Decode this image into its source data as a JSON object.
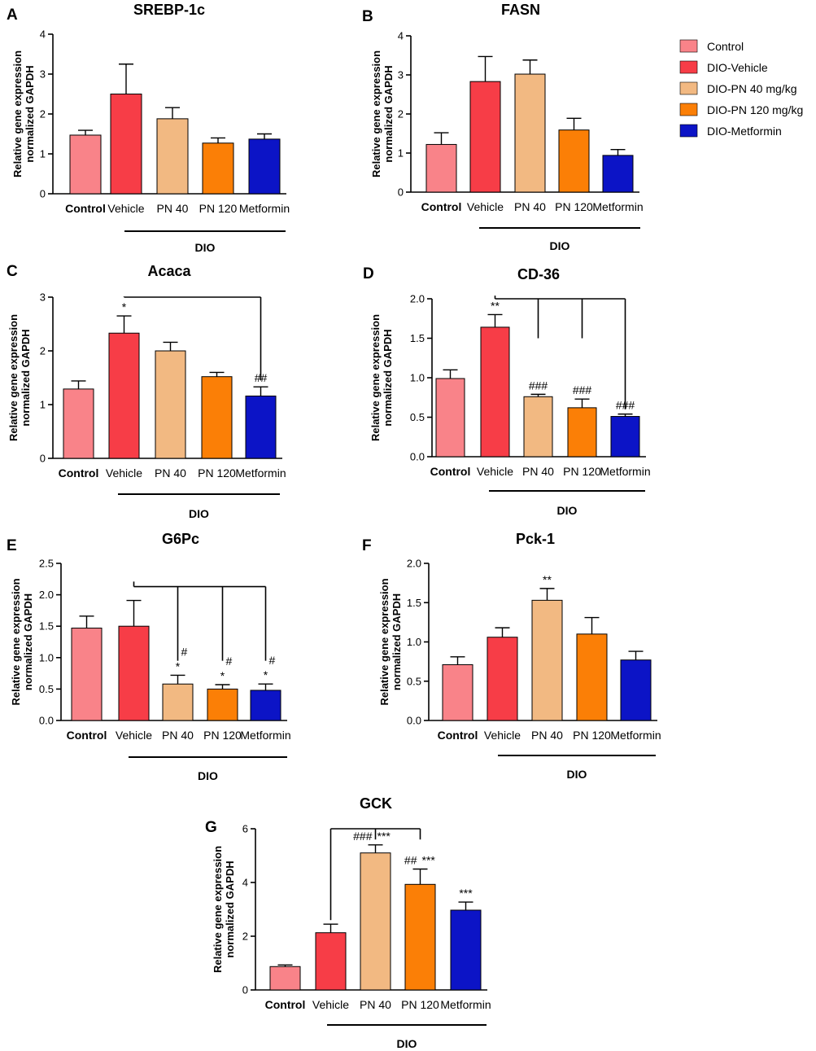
{
  "legend": [
    {
      "label": "Control",
      "color": "#f98389"
    },
    {
      "label": "DIO-Vehicle",
      "color": "#f73d47"
    },
    {
      "label": "DIO-PN 40 mg/kg",
      "color": "#f2b982"
    },
    {
      "label": "DIO-PN 120 mg/kg",
      "color": "#fb7f06"
    },
    {
      "label": "DIO-Metformin",
      "color": "#0c14c6"
    }
  ],
  "chart_data": [
    {
      "panel": "A",
      "type": "bar",
      "title": "SREBP-1c",
      "ylabel": [
        "Relative gene expression",
        "normalized GAPDH"
      ],
      "categories": [
        "Control",
        "Vehicle",
        "PN 40",
        "PN 120",
        "Metformin"
      ],
      "values": [
        1.47,
        2.5,
        1.88,
        1.27,
        1.37
      ],
      "errors": [
        0.12,
        0.75,
        0.28,
        0.13,
        0.13
      ],
      "ylim": [
        0,
        4
      ],
      "yticks": [
        "0",
        "1",
        "2",
        "3",
        "4"
      ],
      "ytick_values": [
        0,
        1,
        2,
        3,
        4
      ],
      "group_label": "DIO",
      "annotations": [],
      "brackets": []
    },
    {
      "panel": "B",
      "type": "bar",
      "title": "FASN",
      "ylabel": [
        "Relative gene expression",
        "normalized GAPDH"
      ],
      "categories": [
        "Control",
        "Vehicle",
        "PN 40",
        "PN 120",
        "Metformin"
      ],
      "values": [
        1.22,
        2.83,
        3.02,
        1.59,
        0.94
      ],
      "errors": [
        0.3,
        0.64,
        0.36,
        0.3,
        0.15
      ],
      "ylim": [
        0,
        4
      ],
      "yticks": [
        "0",
        "1",
        "2",
        "3",
        "4"
      ],
      "ytick_values": [
        0,
        1,
        2,
        3,
        4
      ],
      "group_label": "DIO",
      "annotations": [],
      "brackets": []
    },
    {
      "panel": "C",
      "type": "bar",
      "title": "Acaca",
      "ylabel": [
        "Relative gene expression",
        "normalized GAPDH"
      ],
      "categories": [
        "Control",
        "Vehicle",
        "PN 40",
        "PN 120",
        "Metformin"
      ],
      "values": [
        1.29,
        2.33,
        2.0,
        1.52,
        1.16
      ],
      "errors": [
        0.15,
        0.32,
        0.16,
        0.08,
        0.17
      ],
      "ylim": [
        0,
        3
      ],
      "yticks": [
        "0",
        "1",
        "2",
        "3"
      ],
      "ytick_values": [
        0,
        1,
        2,
        3
      ],
      "group_label": "DIO",
      "annotations": [
        {
          "bar": 1,
          "text": "*"
        },
        {
          "bar": 4,
          "text": "##"
        }
      ],
      "brackets": [
        {
          "from": 1,
          "to": [
            4
          ],
          "level": 3.0,
          "drop_to": [
            1.45
          ]
        }
      ]
    },
    {
      "panel": "D",
      "type": "bar",
      "title": "CD-36",
      "ylabel": [
        "Relative gene expression",
        "normalized GAPDH"
      ],
      "categories": [
        "Control",
        "Vehicle",
        "PN 40",
        "PN 120",
        "Metformin"
      ],
      "values": [
        0.99,
        1.64,
        0.76,
        0.62,
        0.51
      ],
      "errors": [
        0.11,
        0.16,
        0.03,
        0.11,
        0.03
      ],
      "ylim": [
        0,
        2.0
      ],
      "yticks": [
        "0.0",
        "0.5",
        "1.0",
        "1.5",
        "2.0"
      ],
      "ytick_values": [
        0,
        0.5,
        1.0,
        1.5,
        2.0
      ],
      "group_label": "DIO",
      "annotations": [
        {
          "bar": 1,
          "text": "**"
        },
        {
          "bar": 2,
          "text": "###"
        },
        {
          "bar": 3,
          "text": "###"
        },
        {
          "bar": 4,
          "text": "###"
        }
      ],
      "brackets": [
        {
          "from": 1,
          "to": [
            2,
            3,
            4
          ],
          "level": 2.0,
          "drop_to": [
            1.5,
            1.5,
            0.6
          ]
        }
      ]
    },
    {
      "panel": "E",
      "type": "bar",
      "title": "G6Pc",
      "ylabel": [
        "Relative gene expression",
        "normalized GAPDH"
      ],
      "categories": [
        "Control",
        "Vehicle",
        "PN 40",
        "PN 120",
        "Metformin"
      ],
      "values": [
        1.47,
        1.5,
        0.58,
        0.5,
        0.48
      ],
      "errors": [
        0.19,
        0.41,
        0.14,
        0.07,
        0.1
      ],
      "ylim": [
        0,
        2.5
      ],
      "yticks": [
        "0.0",
        "0.5",
        "1.0",
        "1.5",
        "2.0",
        "2.5"
      ],
      "ytick_values": [
        0,
        0.5,
        1.0,
        1.5,
        2.0,
        2.5
      ],
      "group_label": "DIO",
      "annotations": [
        {
          "bar": 2,
          "text": "*"
        },
        {
          "bar": 3,
          "text": "*"
        },
        {
          "bar": 4,
          "text": "*"
        },
        {
          "bar": 2,
          "text": "#",
          "side": true
        },
        {
          "bar": 3,
          "text": "#",
          "side": true
        },
        {
          "bar": 4,
          "text": "#",
          "side": true
        }
      ],
      "brackets": [
        {
          "from": 1,
          "to": [
            2,
            3,
            4
          ],
          "level": 2.13,
          "drop_to": [
            0.95,
            0.95,
            0.95
          ]
        }
      ]
    },
    {
      "panel": "F",
      "type": "bar",
      "title": "Pck-1",
      "ylabel": [
        "Relative gene expression",
        "normalized GAPDH"
      ],
      "categories": [
        "Control",
        "Vehicle",
        "PN 40",
        "PN 120",
        "Metformin"
      ],
      "values": [
        0.71,
        1.06,
        1.53,
        1.1,
        0.77
      ],
      "errors": [
        0.1,
        0.12,
        0.15,
        0.21,
        0.11
      ],
      "ylim": [
        0,
        2.0
      ],
      "yticks": [
        "0.0",
        "0.5",
        "1.0",
        "1.5",
        "2.0"
      ],
      "ytick_values": [
        0,
        0.5,
        1.0,
        1.5,
        2.0
      ],
      "group_label": "DIO",
      "annotations": [
        {
          "bar": 2,
          "text": "**"
        }
      ],
      "brackets": []
    },
    {
      "panel": "G",
      "type": "bar",
      "title": "GCK",
      "ylabel": [
        "Relative gene expression",
        "normalized GAPDH"
      ],
      "categories": [
        "Control",
        "Vehicle",
        "PN 40",
        "PN 120",
        "Metformin"
      ],
      "values": [
        0.87,
        2.13,
        5.1,
        3.93,
        2.97
      ],
      "errors": [
        0.06,
        0.32,
        0.3,
        0.57,
        0.3
      ],
      "ylim": [
        0,
        6
      ],
      "yticks": [
        "0",
        "2",
        "4",
        "6"
      ],
      "ytick_values": [
        0,
        2,
        4,
        6
      ],
      "group_label": "DIO",
      "annotations": [
        {
          "bar": 2,
          "text": "***"
        },
        {
          "bar": 3,
          "text": "***"
        },
        {
          "bar": 4,
          "text": "***"
        },
        {
          "bar": 2,
          "text": "###",
          "left": true
        },
        {
          "bar": 3,
          "text": "##",
          "left": true
        }
      ],
      "brackets": [
        {
          "from": 1,
          "to": [
            2,
            3
          ],
          "level": 6.0,
          "drop_to": [
            5.6,
            5.6
          ],
          "from_drop": 2.6
        }
      ]
    }
  ]
}
